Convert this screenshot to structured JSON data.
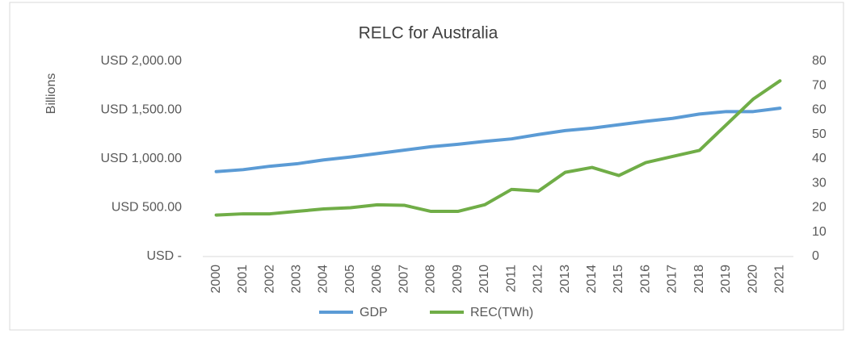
{
  "chart_data": {
    "type": "line",
    "title": "RELC for Australia",
    "ylabel": "Billions",
    "categories": [
      "2000",
      "2001",
      "2002",
      "2003",
      "2004",
      "2005",
      "2006",
      "2007",
      "2008",
      "2009",
      "2010",
      "2011",
      "2012",
      "2013",
      "2014",
      "2015",
      "2016",
      "2017",
      "2018",
      "2019",
      "2020",
      "2021"
    ],
    "series": [
      {
        "name": "GDP",
        "color": "#5b9bd5",
        "axis": "y",
        "values": [
          870,
          890,
          925,
          950,
          990,
          1020,
          1055,
          1090,
          1125,
          1150,
          1180,
          1205,
          1250,
          1290,
          1315,
          1350,
          1385,
          1415,
          1460,
          1485,
          1485,
          1520
        ]
      },
      {
        "name": "REC(TWh)",
        "color": "#70ad47",
        "axis": "y2",
        "values": [
          17,
          17.5,
          17.5,
          18.5,
          19.5,
          20,
          21.2,
          21,
          18.5,
          18.5,
          21.2,
          27.5,
          26.8,
          34.5,
          36.5,
          33.2,
          38.5,
          41,
          43.5,
          54,
          64.5,
          72
        ]
      }
    ],
    "ylim": [
      0,
      2000
    ],
    "yticks": [
      {
        "value": 0,
        "label": "USD -"
      },
      {
        "value": 500,
        "label": "USD 500.00"
      },
      {
        "value": 1000,
        "label": "USD 1,000.00"
      },
      {
        "value": 1500,
        "label": "USD 1,500.00"
      },
      {
        "value": 2000,
        "label": "USD 2,000.00"
      }
    ],
    "y2lim": [
      0,
      80
    ],
    "y2ticks": [
      0,
      10,
      20,
      30,
      40,
      50,
      60,
      70,
      80
    ],
    "grid": false,
    "legend": "bottom"
  }
}
